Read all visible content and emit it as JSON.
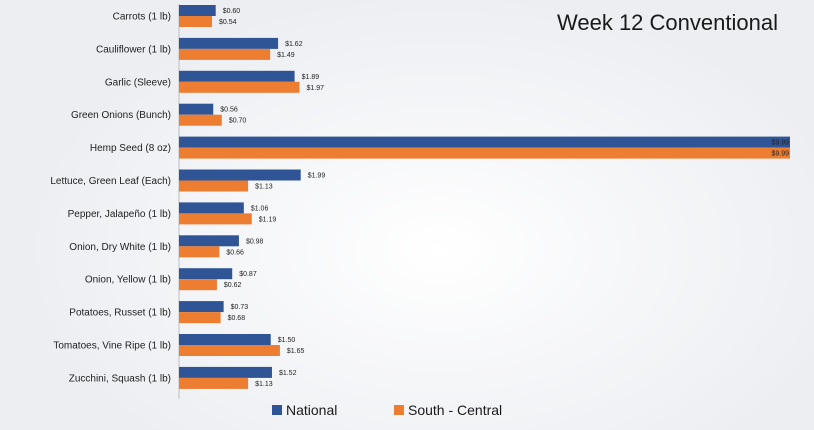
{
  "chart_data": {
    "type": "bar",
    "orientation": "horizontal",
    "title": "Week 12 Conventional",
    "categories": [
      "Carrots (1 lb)",
      "Cauliflower (1 lb)",
      "Garlic (Sleeve)",
      "Green Onions (Bunch)",
      "Hemp Seed (8 oz)",
      "Lettuce, Green Leaf (Each)",
      "Pepper, Jalapeño (1 lb)",
      "Onion, Dry White (1 lb)",
      "Onion, Yellow (1 lb)",
      "Potatoes, Russet (1 lb)",
      "Tomatoes, Vine Ripe (1 lb)",
      "Zucchini, Squash (1 lb)"
    ],
    "series": [
      {
        "name": "National",
        "color": "#2f5597",
        "values": [
          0.6,
          1.62,
          1.89,
          0.56,
          9.99,
          1.99,
          1.06,
          0.98,
          0.87,
          0.73,
          1.5,
          1.52
        ],
        "labels": [
          "$0.60",
          "$1.62",
          "$1.89",
          "$0.56",
          "$9.99",
          "$1.99",
          "$1.06",
          "$0.98",
          "$0.87",
          "$0.73",
          "$1.50",
          "$1.52"
        ]
      },
      {
        "name": "South - Central",
        "color": "#ed7d31",
        "values": [
          0.54,
          1.49,
          1.97,
          0.7,
          9.99,
          1.13,
          1.19,
          0.66,
          0.62,
          0.68,
          1.65,
          1.13
        ],
        "labels": [
          "$0.54",
          "$1.49",
          "$1.97",
          "$0.70",
          "$9.99",
          "$1.13",
          "$1.19",
          "$0.66",
          "$0.62",
          "$0.68",
          "$1.65",
          "$1.13"
        ]
      }
    ],
    "xlabel": "",
    "ylabel": "",
    "xlim": [
      0,
      9.99
    ],
    "grid": false,
    "legend": "bottom"
  },
  "legend": {
    "national": "National",
    "south_central": "South - Central"
  }
}
